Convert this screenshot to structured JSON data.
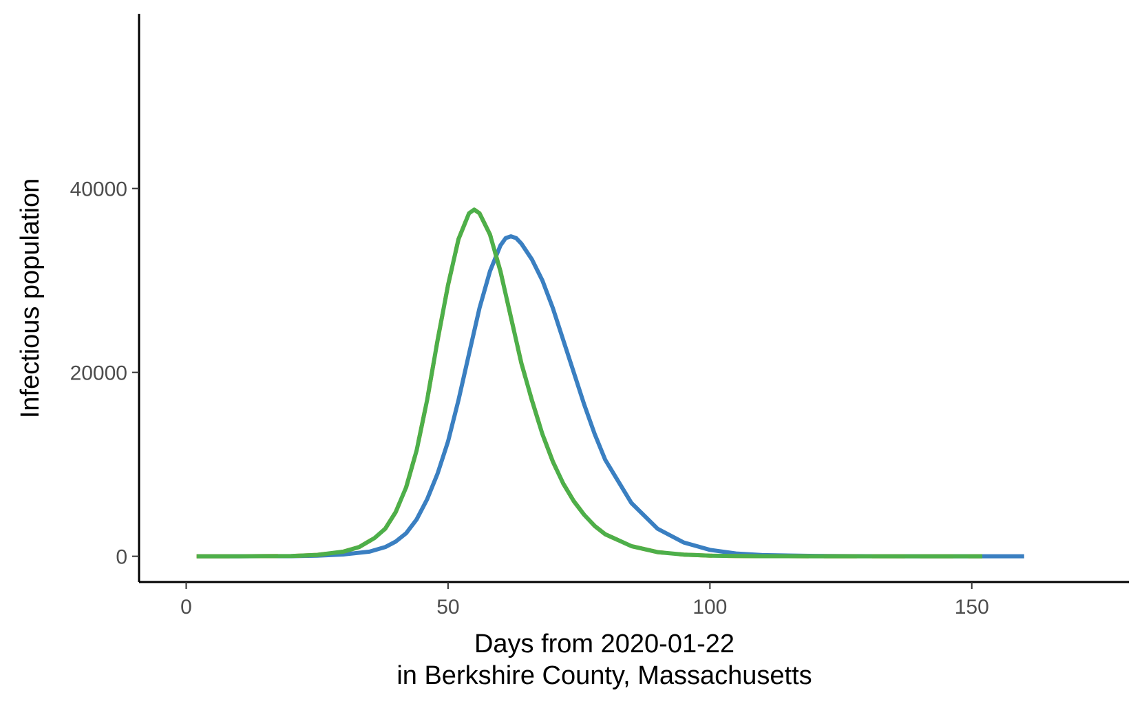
{
  "chart_data": {
    "type": "line",
    "title": "",
    "xlabel_line1": "Days from 2020-01-22",
    "xlabel_line2": "in Berkshire County, Massachusetts",
    "ylabel": "Infectious population",
    "xlim": [
      -9,
      180
    ],
    "ylim": [
      -2800,
      59000
    ],
    "x_ticks": [
      0,
      50,
      100,
      150
    ],
    "x_tick_labels": [
      "0",
      "50",
      "100",
      "150"
    ],
    "y_ticks": [
      0,
      20000,
      40000
    ],
    "y_tick_labels": [
      "0",
      "20000",
      "40000"
    ],
    "grid": false,
    "legend": "none",
    "series": [
      {
        "color": "#3a7fc1",
        "dash": "solid",
        "x": [
          2,
          10,
          20,
          25,
          30,
          35,
          38,
          40,
          42,
          44,
          46,
          48,
          50,
          52,
          54,
          56,
          58,
          60,
          61,
          62,
          63,
          64,
          66,
          68,
          70,
          72,
          74,
          76,
          78,
          80,
          85,
          90,
          95,
          100,
          105,
          110,
          120,
          130,
          140,
          150,
          160
        ],
        "y": [
          0,
          0,
          10,
          60,
          200,
          500,
          1000,
          1600,
          2500,
          4000,
          6200,
          9000,
          12500,
          17000,
          22000,
          27000,
          31000,
          33800,
          34600,
          34800,
          34600,
          34000,
          32300,
          30000,
          27000,
          23500,
          20000,
          16500,
          13300,
          10500,
          5800,
          3000,
          1500,
          700,
          300,
          130,
          40,
          10,
          5,
          0,
          0
        ]
      },
      {
        "color": "#e41a1c",
        "dash": "solid",
        "x": [
          2,
          10,
          20,
          25,
          30,
          33,
          36,
          38,
          40,
          42,
          44,
          46,
          48,
          50,
          52,
          54,
          55,
          56,
          58,
          60,
          62,
          64,
          66,
          68,
          70,
          72,
          74,
          76,
          78,
          80,
          85,
          90,
          95,
          100,
          105,
          110,
          120,
          130,
          140,
          152
        ],
        "y": [
          0,
          0,
          30,
          150,
          500,
          1000,
          2000,
          3000,
          4800,
          7500,
          11500,
          17000,
          23500,
          29500,
          34500,
          37300,
          37700,
          37300,
          35000,
          31000,
          26000,
          21000,
          17000,
          13300,
          10300,
          7900,
          6000,
          4500,
          3300,
          2400,
          1100,
          450,
          180,
          70,
          25,
          10,
          0,
          0,
          0,
          0
        ]
      },
      {
        "color": "#ff8c00",
        "dash": "long",
        "x": [
          2,
          10,
          20,
          25,
          30,
          33,
          36,
          38,
          40,
          42,
          44,
          46,
          48,
          50,
          52,
          54,
          55,
          56,
          58,
          60,
          62,
          64,
          66,
          68,
          70,
          72,
          74,
          76,
          78,
          80,
          85,
          90,
          95,
          100,
          105,
          110,
          120,
          130,
          140,
          152
        ],
        "y": [
          0,
          0,
          30,
          150,
          500,
          1000,
          2000,
          3000,
          4800,
          7500,
          11500,
          17000,
          23500,
          29500,
          34500,
          37300,
          37700,
          37300,
          35000,
          31000,
          26000,
          21000,
          17000,
          13300,
          10300,
          7900,
          6000,
          4500,
          3300,
          2400,
          1100,
          450,
          180,
          70,
          25,
          10,
          0,
          0,
          0,
          0
        ]
      },
      {
        "color": "#4daf4a",
        "dash": "solid",
        "x": [
          2,
          10,
          20,
          25,
          30,
          33,
          36,
          38,
          40,
          42,
          44,
          46,
          48,
          50,
          52,
          54,
          55,
          56,
          58,
          60,
          62,
          64,
          66,
          68,
          70,
          72,
          74,
          76,
          78,
          80,
          85,
          90,
          95,
          100,
          105,
          110,
          120,
          130,
          140,
          152
        ],
        "y": [
          0,
          0,
          30,
          150,
          500,
          1000,
          2000,
          3000,
          4800,
          7500,
          11500,
          17000,
          23500,
          29500,
          34500,
          37300,
          37700,
          37300,
          35000,
          31000,
          26000,
          21000,
          17000,
          13300,
          10300,
          7900,
          6000,
          4500,
          3300,
          2400,
          1100,
          450,
          180,
          70,
          25,
          10,
          0,
          0,
          0,
          0
        ]
      }
    ]
  }
}
